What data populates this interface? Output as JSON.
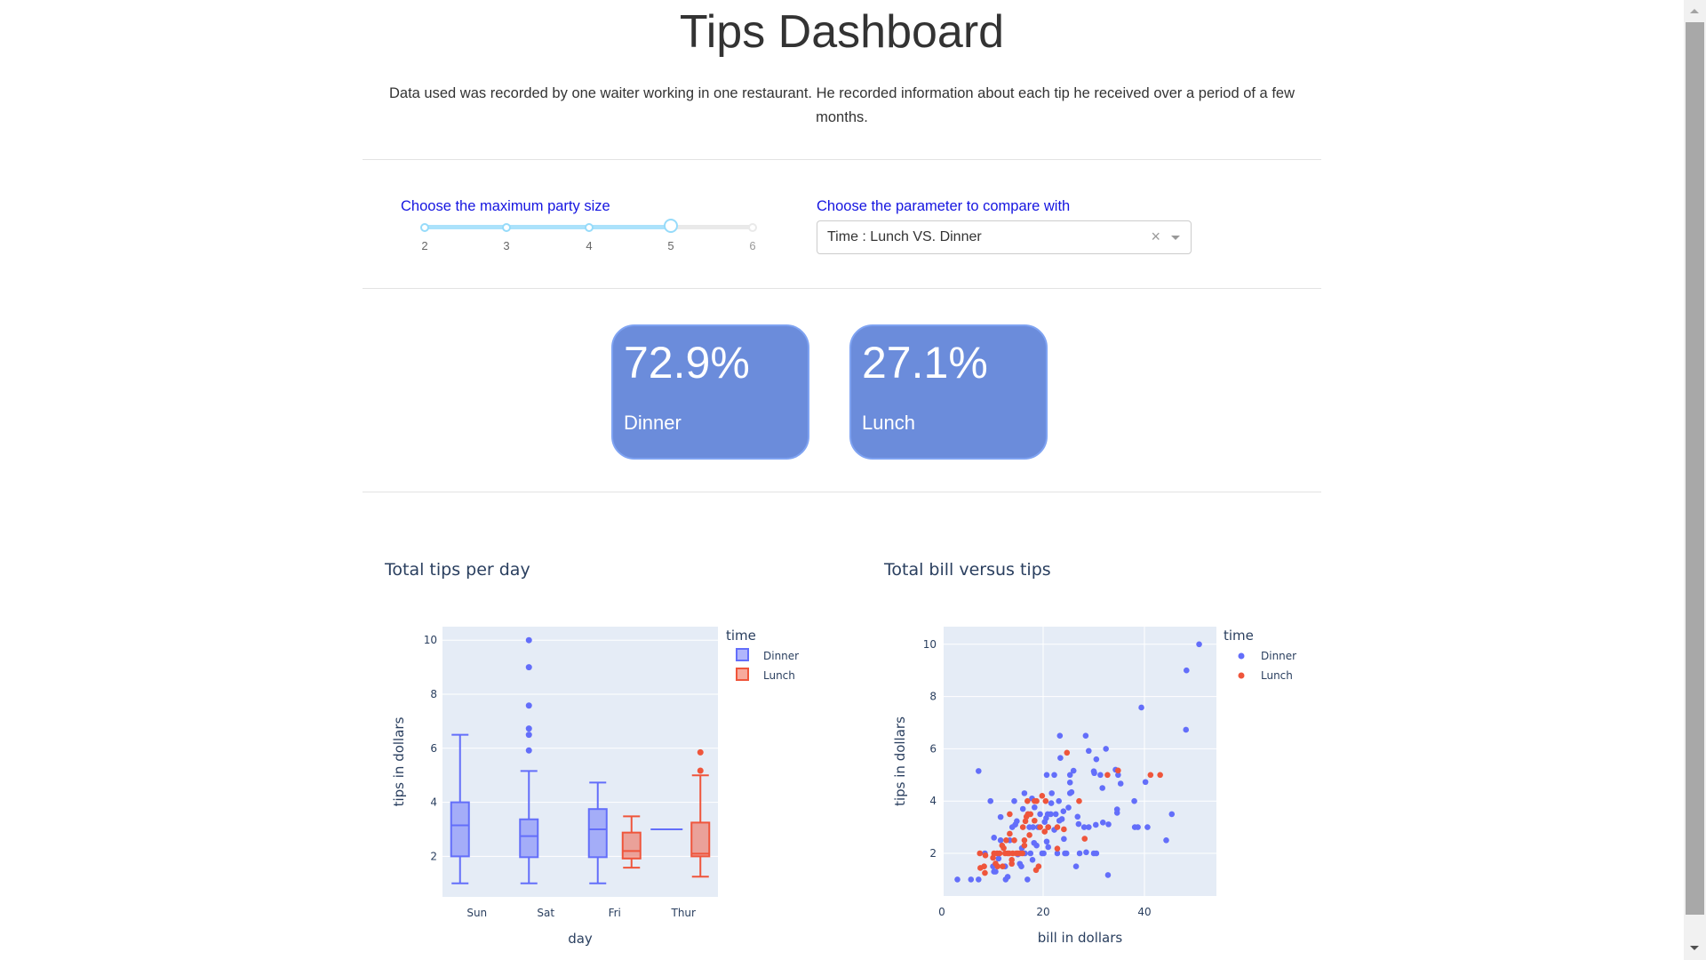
{
  "header": {
    "title": "Tips Dashboard",
    "description": "Data used was recorded by one waiter working in one restaurant. He recorded information about each tip he received over a period of a few months."
  },
  "controls": {
    "slider": {
      "label": "Choose the maximum party size",
      "min": 2,
      "max": 6,
      "value": 5,
      "marks": [
        "2",
        "3",
        "4",
        "5",
        "6"
      ]
    },
    "dropdown": {
      "label": "Choose the parameter to compare with",
      "value": "Time : Lunch VS. Dinner",
      "clear_icon": "×"
    }
  },
  "cards": [
    {
      "value": "72.9%",
      "label": "Dinner"
    },
    {
      "value": "27.1%",
      "label": "Lunch"
    }
  ],
  "colors": {
    "dinner": "#636efa",
    "lunch": "#ef553b",
    "card_bg": "#6b8cdb",
    "label_blue": "#1515e0",
    "plot_bg": "#e5ecf6"
  },
  "charts": {
    "box": {
      "title": "Total tips per day",
      "xlabel": "day",
      "ylabel": "tips in dollars",
      "legend_title": "time",
      "legend": [
        "Dinner",
        "Lunch"
      ]
    },
    "scatter": {
      "title": "Total bill versus tips",
      "xlabel": "bill in dollars",
      "ylabel": "tips in dollars",
      "legend_title": "time",
      "legend": [
        "Dinner",
        "Lunch"
      ]
    }
  },
  "chart_data": [
    {
      "type": "box",
      "title": "Total tips per day",
      "xlabel": "day",
      "ylabel": "tips in dollars",
      "categories": [
        "Sun",
        "Sat",
        "Fri",
        "Thur"
      ],
      "ylim": [
        0.5,
        10.5
      ],
      "yticks": [
        2,
        4,
        6,
        8,
        10
      ],
      "legend_title": "time",
      "series": [
        {
          "name": "Dinner",
          "color": "#636efa",
          "boxes": [
            {
              "category": "Sun",
              "min": 1.0,
              "q1": 2.0,
              "median": 3.15,
              "q3": 4.0,
              "max": 6.5,
              "outliers": []
            },
            {
              "category": "Sat",
              "min": 1.0,
              "q1": 1.97,
              "median": 2.75,
              "q3": 3.37,
              "max": 5.16,
              "outliers": [
                5.92,
                6.5,
                6.73,
                7.58,
                9.0,
                10.0
              ]
            },
            {
              "category": "Fri",
              "min": 1.0,
              "q1": 1.97,
              "median": 3.0,
              "q3": 3.75,
              "max": 4.73,
              "outliers": []
            },
            {
              "category": "Thur",
              "min": 3.0,
              "q1": 3.0,
              "median": 3.0,
              "q3": 3.0,
              "max": 3.0,
              "outliers": []
            }
          ]
        },
        {
          "name": "Lunch",
          "color": "#ef553b",
          "boxes": [
            {
              "category": "Fri",
              "min": 1.58,
              "q1": 1.92,
              "median": 2.2,
              "q3": 2.88,
              "max": 3.48,
              "outliers": []
            },
            {
              "category": "Thur",
              "min": 1.25,
              "q1": 2.0,
              "median": 2.1,
              "q3": 3.25,
              "max": 5.0,
              "outliers": [
                5.17,
                5.85
              ]
            }
          ]
        }
      ]
    },
    {
      "type": "scatter",
      "title": "Total bill versus tips",
      "xlabel": "bill in dollars",
      "ylabel": "tips in dollars",
      "xlim": [
        -0.5,
        54
      ],
      "ylim": [
        0.5,
        10.6
      ],
      "xticks": [
        0,
        20,
        40
      ],
      "yticks": [
        2,
        4,
        6,
        8,
        10
      ],
      "legend_title": "time",
      "series": [
        {
          "name": "Dinner",
          "color": "#636efa",
          "points": [
            [
              3.07,
              1.0
            ],
            [
              5.75,
              1.0
            ],
            [
              7.25,
              1.0
            ],
            [
              7.25,
              5.15
            ],
            [
              9.6,
              4.0
            ],
            [
              8.5,
              2.0
            ],
            [
              10.3,
              2.6
            ],
            [
              11.6,
              3.39
            ],
            [
              10.1,
              1.5
            ],
            [
              10.3,
              1.3
            ],
            [
              10.6,
              1.3
            ],
            [
              11.2,
              1.8
            ],
            [
              11.6,
              2.5
            ],
            [
              12.5,
              1.5
            ],
            [
              12.6,
              1.0
            ],
            [
              13.0,
              1.1
            ],
            [
              13.4,
              2.5
            ],
            [
              13.9,
              3.0
            ],
            [
              14.3,
              4.0
            ],
            [
              14.5,
              3.1
            ],
            [
              14.8,
              3.23
            ],
            [
              15.0,
              1.96
            ],
            [
              15.4,
              1.6
            ],
            [
              15.7,
              1.5
            ],
            [
              15.8,
              2.2
            ],
            [
              16.0,
              3.7
            ],
            [
              16.3,
              4.3
            ],
            [
              16.4,
              2.0
            ],
            [
              16.9,
              1.0
            ],
            [
              17.0,
              3.5
            ],
            [
              17.3,
              3.0
            ],
            [
              17.5,
              2.0
            ],
            [
              17.8,
              4.1
            ],
            [
              17.9,
              1.75
            ],
            [
              18.0,
              3.0
            ],
            [
              18.2,
              2.4
            ],
            [
              18.3,
              3.76
            ],
            [
              18.7,
              2.3
            ],
            [
              19.0,
              3.0
            ],
            [
              19.4,
              3.5
            ],
            [
              19.8,
              2.0
            ],
            [
              20.1,
              2.0
            ],
            [
              20.3,
              3.2
            ],
            [
              20.6,
              3.35
            ],
            [
              20.7,
              2.45
            ],
            [
              20.7,
              5.0
            ],
            [
              20.9,
              3.5
            ],
            [
              21.0,
              3.0
            ],
            [
              21.0,
              2.24
            ],
            [
              21.5,
              3.5
            ],
            [
              21.7,
              4.3
            ],
            [
              21.6,
              3.92
            ],
            [
              22.2,
              2.9
            ],
            [
              22.5,
              3.5
            ],
            [
              22.2,
              5.0
            ],
            [
              22.8,
              2.0
            ],
            [
              23.1,
              4.0
            ],
            [
              23.2,
              3.25
            ],
            [
              23.3,
              6.5
            ],
            [
              23.4,
              5.65
            ],
            [
              23.7,
              3.31
            ],
            [
              24.0,
              3.61
            ],
            [
              24.1,
              2.55
            ],
            [
              24.3,
              2.0
            ],
            [
              24.6,
              2.0
            ],
            [
              25.0,
              3.75
            ],
            [
              25.3,
              4.3
            ],
            [
              25.3,
              4.71
            ],
            [
              25.3,
              5.0
            ],
            [
              25.6,
              4.34
            ],
            [
              26.0,
              5.16
            ],
            [
              26.5,
              1.5
            ],
            [
              26.8,
              3.4
            ],
            [
              27.0,
              3.12
            ],
            [
              27.2,
              2.0
            ],
            [
              28.1,
              3.0
            ],
            [
              28.4,
              6.5
            ],
            [
              28.5,
              2.04
            ],
            [
              29.0,
              5.92
            ],
            [
              29.0,
              3.0
            ],
            [
              30.0,
              2.0
            ],
            [
              30.0,
              5.14
            ],
            [
              30.1,
              5.07
            ],
            [
              30.5,
              2.0
            ],
            [
              30.4,
              3.09
            ],
            [
              30.5,
              5.6
            ],
            [
              31.3,
              5.0
            ],
            [
              31.7,
              4.5
            ],
            [
              31.8,
              3.18
            ],
            [
              32.4,
              6.0
            ],
            [
              32.8,
              1.17
            ],
            [
              32.9,
              3.11
            ],
            [
              34.3,
              5.2
            ],
            [
              34.6,
              3.55
            ],
            [
              34.6,
              3.68
            ],
            [
              34.8,
              5.0
            ],
            [
              35.3,
              4.67
            ],
            [
              38.0,
              4.0
            ],
            [
              38.1,
              3.0
            ],
            [
              38.7,
              3.0
            ],
            [
              39.4,
              7.58
            ],
            [
              40.2,
              4.73
            ],
            [
              40.6,
              3.0
            ],
            [
              44.3,
              2.5
            ],
            [
              45.4,
              3.5
            ],
            [
              48.2,
              6.73
            ],
            [
              48.3,
              9.0
            ],
            [
              50.8,
              10.0
            ]
          ]
        },
        {
          "name": "Lunch",
          "color": "#ef553b",
          "points": [
            [
              7.5,
              2.0
            ],
            [
              7.6,
              1.44
            ],
            [
              8.35,
              1.5
            ],
            [
              8.5,
              1.25
            ],
            [
              8.6,
              1.92
            ],
            [
              10.1,
              1.83
            ],
            [
              10.3,
              2.0
            ],
            [
              10.6,
              1.61
            ],
            [
              10.9,
              2.0
            ],
            [
              11.0,
              1.5
            ],
            [
              11.4,
              2.0
            ],
            [
              11.9,
              2.3
            ],
            [
              12.0,
              1.5
            ],
            [
              12.2,
              2.2
            ],
            [
              12.5,
              2.0
            ],
            [
              12.7,
              2.5
            ],
            [
              13.0,
              2.0
            ],
            [
              13.3,
              2.0
            ],
            [
              13.4,
              3.5
            ],
            [
              13.4,
              2.75
            ],
            [
              13.8,
              1.6
            ],
            [
              13.8,
              1.75
            ],
            [
              14.0,
              2.0
            ],
            [
              14.3,
              2.5
            ],
            [
              14.7,
              2.0
            ],
            [
              15.0,
              2.0
            ],
            [
              15.4,
              2.0
            ],
            [
              15.9,
              2.0
            ],
            [
              16.0,
              3.0
            ],
            [
              16.3,
              2.5
            ],
            [
              16.3,
              2.3
            ],
            [
              16.5,
              3.23
            ],
            [
              16.7,
              3.4
            ],
            [
              16.9,
              4.0
            ],
            [
              17.0,
              3.5
            ],
            [
              17.3,
              2.7
            ],
            [
              17.5,
              3.5
            ],
            [
              18.3,
              4.0
            ],
            [
              18.3,
              3.25
            ],
            [
              18.6,
              1.36
            ],
            [
              18.7,
              4.0
            ],
            [
              19.1,
              1.5
            ],
            [
              19.4,
              3.0
            ],
            [
              19.8,
              4.2
            ],
            [
              20.3,
              2.83
            ],
            [
              20.5,
              4.0
            ],
            [
              21.0,
              3.0
            ],
            [
              22.8,
              3.0
            ],
            [
              22.8,
              2.18
            ],
            [
              24.1,
              2.92
            ],
            [
              24.7,
              5.85
            ],
            [
              28.2,
              2.56
            ],
            [
              27.1,
              4.0
            ],
            [
              32.7,
              5.0
            ],
            [
              34.8,
              5.17
            ],
            [
              41.2,
              5.0
            ],
            [
              43.1,
              5.0
            ]
          ]
        }
      ]
    }
  ]
}
